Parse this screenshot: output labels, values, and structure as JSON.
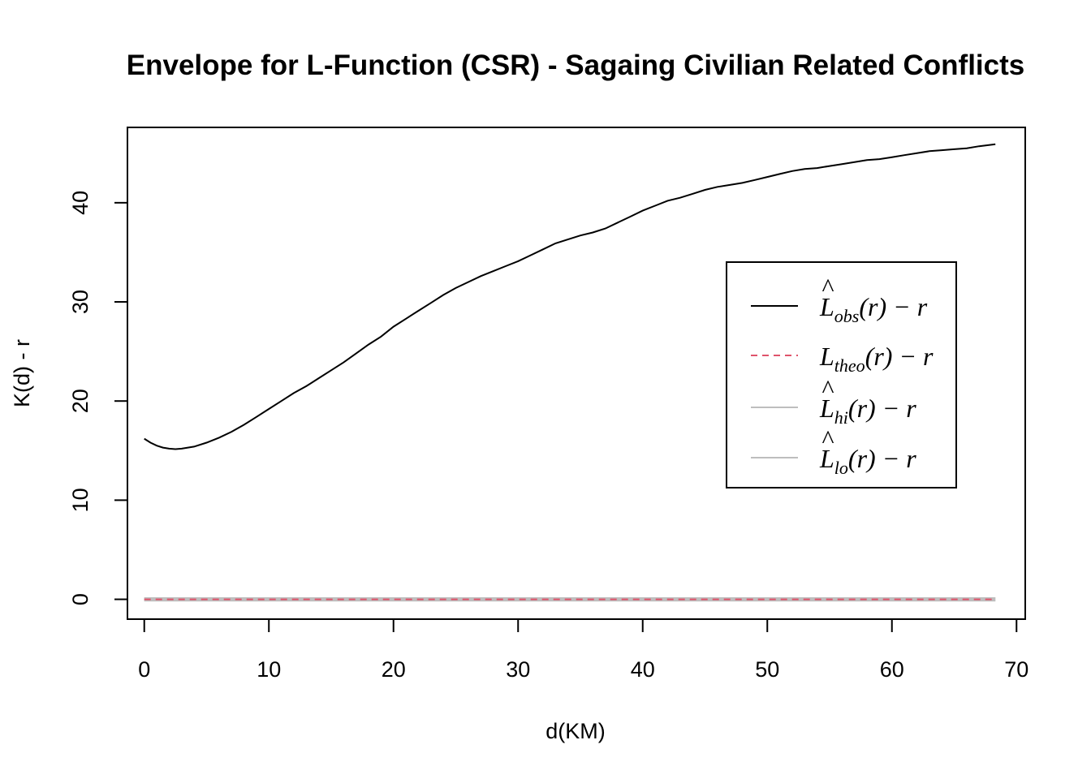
{
  "chart_data": {
    "type": "line",
    "title": "Envelope for L-Function (CSR) - Sagaing Civilian Related Conflicts",
    "xlabel": "d(KM)",
    "ylabel": "K(d) - r",
    "xlim": [
      -1.35,
      70.7
    ],
    "ylim": [
      -2.0,
      47.6
    ],
    "xticks": [
      0,
      10,
      20,
      30,
      40,
      50,
      60,
      70
    ],
    "yticks": [
      0,
      10,
      20,
      30,
      40
    ],
    "grid": false,
    "legend_position": "right",
    "series": [
      {
        "name": "obs",
        "color": "#000000",
        "dash": "solid",
        "x": [
          0,
          0.5,
          1,
          1.5,
          2,
          2.5,
          3,
          4,
          5,
          6,
          7,
          8,
          9,
          10,
          11,
          12,
          13,
          14,
          15,
          16,
          17,
          18,
          19,
          20,
          21,
          22,
          23,
          24,
          25,
          26,
          27,
          28,
          29,
          30,
          31,
          32,
          33,
          34,
          35,
          36,
          37,
          38,
          39,
          40,
          41,
          42,
          43,
          44,
          45,
          46,
          47,
          48,
          49,
          50,
          51,
          52,
          53,
          54,
          55,
          56,
          57,
          58,
          59,
          60,
          61,
          62,
          63,
          64,
          65,
          66,
          67,
          68.3
        ],
        "y": [
          16.2,
          15.8,
          15.5,
          15.3,
          15.2,
          15.15,
          15.2,
          15.4,
          15.8,
          16.3,
          16.9,
          17.6,
          18.4,
          19.2,
          20.0,
          20.8,
          21.5,
          22.3,
          23.1,
          23.9,
          24.8,
          25.7,
          26.5,
          27.5,
          28.3,
          29.1,
          29.9,
          30.7,
          31.4,
          32.0,
          32.6,
          33.1,
          33.6,
          34.1,
          34.7,
          35.3,
          35.9,
          36.3,
          36.7,
          37.0,
          37.4,
          38.0,
          38.6,
          39.2,
          39.7,
          40.2,
          40.5,
          40.9,
          41.3,
          41.6,
          41.8,
          42.0,
          42.3,
          42.6,
          42.9,
          43.2,
          43.4,
          43.5,
          43.7,
          43.9,
          44.1,
          44.3,
          44.4,
          44.6,
          44.8,
          45.0,
          45.2,
          45.3,
          45.4,
          45.5,
          45.7,
          45.9
        ]
      },
      {
        "name": "theo",
        "color": "#DF536B",
        "dash": "dashed",
        "x": [
          0,
          68.3
        ],
        "y": [
          0,
          0
        ]
      },
      {
        "name": "hi",
        "color": "#BEBEBE",
        "dash": "solid",
        "x": [
          0,
          68.3
        ],
        "y": [
          0,
          0
        ]
      },
      {
        "name": "lo",
        "color": "#BEBEBE",
        "dash": "solid",
        "x": [
          0,
          68.3
        ],
        "y": [
          0,
          0
        ]
      }
    ],
    "legend": [
      {
        "symbol": "L",
        "hat": "^",
        "sub": "obs",
        "expr": "(r) − r",
        "color": "#000000",
        "dash": "solid"
      },
      {
        "symbol": "L",
        "hat": "",
        "sub": "theo",
        "expr": "(r) − r",
        "color": "#DF536B",
        "dash": "dashed"
      },
      {
        "symbol": "L",
        "hat": "^",
        "sub": "hi",
        "expr": "(r) − r",
        "color": "#BEBEBE",
        "dash": "solid"
      },
      {
        "symbol": "L",
        "hat": "^",
        "sub": "lo",
        "expr": "(r) − r",
        "color": "#BEBEBE",
        "dash": "solid"
      }
    ]
  }
}
